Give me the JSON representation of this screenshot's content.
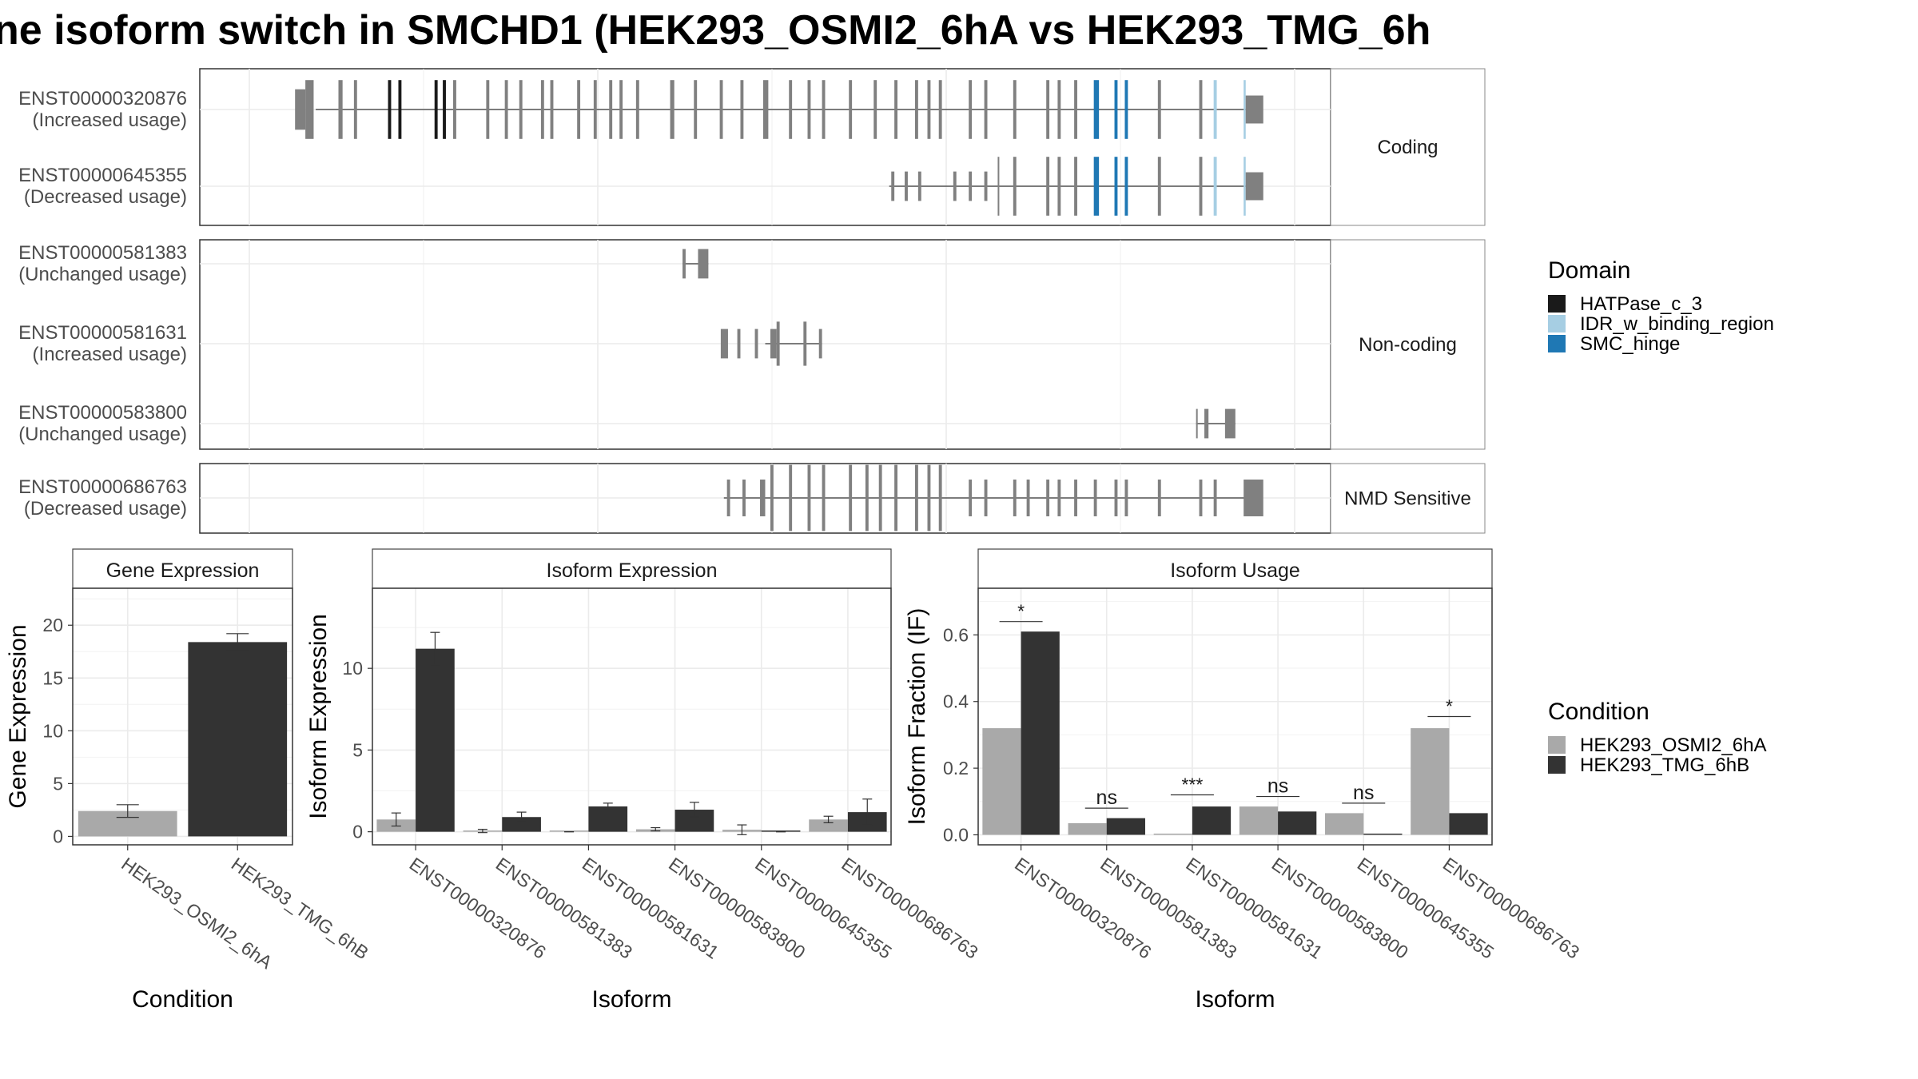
{
  "title": "ne isoform switch in SMCHD1 (HEK293_OSMI2_6hA vs HEK293_TMG_6h",
  "colors": {
    "exon": "#808080",
    "HATPase_c_3": "#1a1a1a",
    "IDR_w_binding_region": "#a6cee3",
    "SMC_hinge": "#1f78b4",
    "cond1": "#a9a9a9",
    "cond2": "#333333"
  },
  "transcript_panels": [
    {
      "label": "Coding",
      "transcripts": [
        {
          "id": "ENST00000320876",
          "usage": "(Increased usage)",
          "line": [
            0.065,
            0.97
          ],
          "exons": [
            [
              0.045,
              0.055,
              0.55,
              "exon"
            ],
            [
              0.055,
              0.063,
              0.8,
              "exon"
            ],
            [
              0.087,
              0.091,
              0.8,
              "exon"
            ],
            [
              0.102,
              0.105,
              0.8,
              "exon"
            ],
            [
              0.135,
              0.138,
              0.8,
              "HATPase_c_3"
            ],
            [
              0.145,
              0.148,
              0.8,
              "HATPase_c_3"
            ],
            [
              0.18,
              0.183,
              0.8,
              "HATPase_c_3"
            ],
            [
              0.188,
              0.191,
              0.8,
              "HATPase_c_3"
            ],
            [
              0.198,
              0.201,
              0.8,
              "exon"
            ],
            [
              0.23,
              0.233,
              0.8,
              "exon"
            ],
            [
              0.248,
              0.251,
              0.8,
              "exon"
            ],
            [
              0.262,
              0.265,
              0.8,
              "exon"
            ],
            [
              0.283,
              0.286,
              0.8,
              "exon"
            ],
            [
              0.292,
              0.295,
              0.8,
              "exon"
            ],
            [
              0.318,
              0.321,
              0.8,
              "exon"
            ],
            [
              0.334,
              0.337,
              0.8,
              "exon"
            ],
            [
              0.349,
              0.352,
              0.8,
              "exon"
            ],
            [
              0.359,
              0.362,
              0.8,
              "exon"
            ],
            [
              0.375,
              0.378,
              0.8,
              "exon"
            ],
            [
              0.408,
              0.412,
              0.8,
              "exon"
            ],
            [
              0.431,
              0.434,
              0.8,
              "exon"
            ],
            [
              0.456,
              0.459,
              0.8,
              "exon"
            ],
            [
              0.476,
              0.479,
              0.8,
              "exon"
            ],
            [
              0.498,
              0.503,
              0.8,
              "exon"
            ],
            [
              0.523,
              0.526,
              0.8,
              "exon"
            ],
            [
              0.541,
              0.544,
              0.8,
              "exon"
            ],
            [
              0.555,
              0.558,
              0.8,
              "exon"
            ],
            [
              0.581,
              0.584,
              0.8,
              "exon"
            ],
            [
              0.605,
              0.608,
              0.8,
              "exon"
            ],
            [
              0.625,
              0.628,
              0.8,
              "exon"
            ],
            [
              0.645,
              0.648,
              0.8,
              "exon"
            ],
            [
              0.657,
              0.66,
              0.8,
              "exon"
            ],
            [
              0.668,
              0.671,
              0.8,
              "exon"
            ],
            [
              0.697,
              0.7,
              0.8,
              "exon"
            ],
            [
              0.712,
              0.715,
              0.8,
              "exon"
            ],
            [
              0.74,
              0.743,
              0.8,
              "exon"
            ],
            [
              0.772,
              0.775,
              0.8,
              "exon"
            ],
            [
              0.783,
              0.786,
              0.8,
              "exon"
            ],
            [
              0.799,
              0.802,
              0.8,
              "exon"
            ],
            [
              0.818,
              0.823,
              0.8,
              "SMC_hinge"
            ],
            [
              0.838,
              0.841,
              0.8,
              "SMC_hinge"
            ],
            [
              0.848,
              0.851,
              0.8,
              "SMC_hinge"
            ],
            [
              0.88,
              0.883,
              0.8,
              "exon"
            ],
            [
              0.92,
              0.923,
              0.8,
              "exon"
            ],
            [
              0.934,
              0.937,
              0.8,
              "IDR_w_binding_region"
            ],
            [
              0.963,
              0.965,
              0.8,
              "IDR_w_binding_region"
            ],
            [
              0.965,
              0.982,
              0.38,
              "exon"
            ]
          ]
        },
        {
          "id": "ENST00000645355",
          "usage": "(Decreased usage)",
          "line": [
            0.62,
            0.97
          ],
          "exons": [
            [
              0.622,
              0.625,
              0.4,
              "exon"
            ],
            [
              0.635,
              0.638,
              0.4,
              "exon"
            ],
            [
              0.648,
              0.651,
              0.4,
              "exon"
            ],
            [
              0.682,
              0.685,
              0.4,
              "exon"
            ],
            [
              0.697,
              0.7,
              0.4,
              "exon"
            ],
            [
              0.712,
              0.715,
              0.4,
              "exon"
            ],
            [
              0.725,
              0.726,
              0.8,
              "exon"
            ],
            [
              0.74,
              0.743,
              0.8,
              "exon"
            ],
            [
              0.772,
              0.775,
              0.8,
              "exon"
            ],
            [
              0.783,
              0.786,
              0.8,
              "exon"
            ],
            [
              0.799,
              0.802,
              0.8,
              "exon"
            ],
            [
              0.818,
              0.823,
              0.8,
              "SMC_hinge"
            ],
            [
              0.838,
              0.841,
              0.8,
              "SMC_hinge"
            ],
            [
              0.848,
              0.851,
              0.8,
              "SMC_hinge"
            ],
            [
              0.88,
              0.883,
              0.8,
              "exon"
            ],
            [
              0.92,
              0.923,
              0.8,
              "exon"
            ],
            [
              0.934,
              0.937,
              0.8,
              "IDR_w_binding_region"
            ],
            [
              0.963,
              0.965,
              0.8,
              "IDR_w_binding_region"
            ],
            [
              0.965,
              0.982,
              0.38,
              "exon"
            ]
          ]
        }
      ]
    },
    {
      "label": "Non-coding",
      "transcripts": [
        {
          "id": "ENST00000581383",
          "usage": "(Unchanged usage)",
          "line": [
            0.42,
            0.445
          ],
          "exons": [
            [
              0.42,
              0.423,
              0.4,
              "exon"
            ],
            [
              0.435,
              0.445,
              0.4,
              "exon"
            ]
          ]
        },
        {
          "id": "ENST00000581631",
          "usage": "(Increased usage)",
          "line": [
            0.5,
            0.555
          ],
          "exons": [
            [
              0.457,
              0.464,
              0.4,
              "exon"
            ],
            [
              0.473,
              0.476,
              0.4,
              "exon"
            ],
            [
              0.49,
              0.493,
              0.4,
              "exon"
            ],
            [
              0.505,
              0.511,
              0.4,
              "exon"
            ],
            [
              0.511,
              0.514,
              0.6,
              "exon"
            ],
            [
              0.537,
              0.54,
              0.6,
              "exon"
            ],
            [
              0.552,
              0.555,
              0.4,
              "exon"
            ]
          ]
        },
        {
          "id": "ENST00000583800",
          "usage": "(Unchanged usage)",
          "line": [
            0.917,
            0.955
          ],
          "exons": [
            [
              0.917,
              0.918,
              0.4,
              "exon"
            ],
            [
              0.925,
              0.929,
              0.4,
              "exon"
            ],
            [
              0.945,
              0.955,
              0.4,
              "exon"
            ]
          ]
        }
      ]
    },
    {
      "label": "NMD Sensitive",
      "transcripts": [
        {
          "id": "ENST00000686763",
          "usage": "(Decreased usage)",
          "line": [
            0.46,
            0.97
          ],
          "exons": [
            [
              0.463,
              0.466,
              0.5,
              "exon"
            ],
            [
              0.478,
              0.481,
              0.5,
              "exon"
            ],
            [
              0.495,
              0.5,
              0.5,
              "exon"
            ],
            [
              0.505,
              0.508,
              0.9,
              "exon"
            ],
            [
              0.523,
              0.526,
              0.9,
              "exon"
            ],
            [
              0.541,
              0.544,
              0.9,
              "exon"
            ],
            [
              0.555,
              0.558,
              0.9,
              "exon"
            ],
            [
              0.581,
              0.584,
              0.9,
              "exon"
            ],
            [
              0.597,
              0.6,
              0.9,
              "exon"
            ],
            [
              0.61,
              0.613,
              0.9,
              "exon"
            ],
            [
              0.625,
              0.628,
              0.9,
              "exon"
            ],
            [
              0.645,
              0.648,
              0.9,
              "exon"
            ],
            [
              0.657,
              0.66,
              0.9,
              "exon"
            ],
            [
              0.668,
              0.671,
              0.9,
              "exon"
            ],
            [
              0.697,
              0.7,
              0.5,
              "exon"
            ],
            [
              0.712,
              0.715,
              0.5,
              "exon"
            ],
            [
              0.74,
              0.743,
              0.5,
              "exon"
            ],
            [
              0.753,
              0.756,
              0.5,
              "exon"
            ],
            [
              0.772,
              0.775,
              0.5,
              "exon"
            ],
            [
              0.783,
              0.786,
              0.5,
              "exon"
            ],
            [
              0.799,
              0.802,
              0.5,
              "exon"
            ],
            [
              0.818,
              0.821,
              0.5,
              "exon"
            ],
            [
              0.838,
              0.841,
              0.5,
              "exon"
            ],
            [
              0.848,
              0.851,
              0.5,
              "exon"
            ],
            [
              0.88,
              0.883,
              0.5,
              "exon"
            ],
            [
              0.92,
              0.923,
              0.5,
              "exon"
            ],
            [
              0.934,
              0.937,
              0.5,
              "exon"
            ],
            [
              0.963,
              0.982,
              0.5,
              "exon"
            ]
          ]
        }
      ]
    }
  ],
  "domain_legend": {
    "title": "Domain",
    "items": [
      {
        "name": "HATPase_c_3",
        "color": "#1a1a1a"
      },
      {
        "name": "IDR_w_binding_region",
        "color": "#a6cee3"
      },
      {
        "name": "SMC_hinge",
        "color": "#1f78b4"
      }
    ]
  },
  "condition_legend": {
    "title": "Condition",
    "items": [
      {
        "name": "HEK293_OSMI2_6hA",
        "color": "#a9a9a9"
      },
      {
        "name": "HEK293_TMG_6hB",
        "color": "#333333"
      }
    ]
  },
  "chart_data": [
    {
      "type": "bar",
      "title": "Gene Expression",
      "xlabel": "Condition",
      "ylabel": "Gene Expression",
      "categories": [
        "HEK293_OSMI2_6hA",
        "HEK293_TMG_6hB"
      ],
      "values": [
        2.4,
        18.4
      ],
      "errors": [
        0.6,
        0.8
      ],
      "colors": [
        "#a9a9a9",
        "#333333"
      ],
      "ylim": [
        -0.8,
        23.5
      ],
      "yticks": [
        0,
        5,
        10,
        15,
        20
      ]
    },
    {
      "type": "bar",
      "title": "Isoform Expression",
      "xlabel": "Isoform",
      "ylabel": "Isoform Expression",
      "categories": [
        "ENST00000320876",
        "ENST00000581383",
        "ENST00000581631",
        "ENST00000583800",
        "ENST00000645355",
        "ENST00000686763"
      ],
      "series": [
        {
          "name": "HEK293_OSMI2_6hA",
          "values": [
            0.75,
            0.05,
            0.0,
            0.15,
            0.12,
            0.75
          ],
          "errors": [
            0.4,
            0.1,
            0.0,
            0.1,
            0.3,
            0.2
          ]
        },
        {
          "name": "HEK293_TMG_6hB",
          "values": [
            11.2,
            0.9,
            1.55,
            1.35,
            0.0,
            1.2
          ],
          "errors": [
            1.0,
            0.3,
            0.2,
            0.45,
            0.0,
            0.8
          ]
        }
      ],
      "ylim": [
        -0.8,
        14.9
      ],
      "yticks": [
        0,
        5,
        10
      ]
    },
    {
      "type": "bar",
      "title": "Isoform Usage",
      "xlabel": "Isoform",
      "ylabel": "Isoform Fraction (IF)",
      "categories": [
        "ENST00000320876",
        "ENST00000581383",
        "ENST00000581631",
        "ENST00000583800",
        "ENST00000645355",
        "ENST00000686763"
      ],
      "series": [
        {
          "name": "HEK293_OSMI2_6hA",
          "values": [
            0.32,
            0.035,
            0.0,
            0.085,
            0.065,
            0.32
          ]
        },
        {
          "name": "HEK293_TMG_6hB",
          "values": [
            0.61,
            0.05,
            0.085,
            0.07,
            0.0,
            0.065
          ]
        }
      ],
      "significance": [
        "*",
        "ns",
        "***",
        "ns",
        "ns",
        "*"
      ],
      "sig_y": [
        0.64,
        0.08,
        0.12,
        0.115,
        0.095,
        0.355
      ],
      "ylim": [
        -0.03,
        0.74
      ],
      "yticks": [
        0.0,
        0.2,
        0.4,
        0.6
      ],
      "ytick_labels": [
        "0.0",
        "0.2",
        "0.4",
        "0.6"
      ]
    }
  ]
}
